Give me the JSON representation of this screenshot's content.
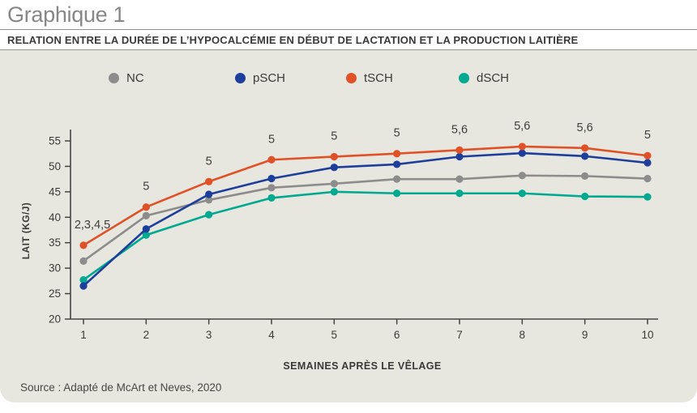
{
  "header": {
    "title": "Graphique 1",
    "subtitle": "RELATION ENTRE LA DURÉE DE L’HYPOCALCÉMIE EN DÉBUT DE LACTATION ET LA PRODUCTION LAITIÈRE"
  },
  "legend": {
    "items": [
      {
        "label": "NC",
        "color": "#8c8c8c"
      },
      {
        "label": "pSCH",
        "color": "#1d3e9b"
      },
      {
        "label": "tSCH",
        "color": "#e05127"
      },
      {
        "label": "dSCH",
        "color": "#00a98f"
      }
    ]
  },
  "chart_data": {
    "type": "line",
    "title": "Graphique 1",
    "x": [
      1,
      2,
      3,
      4,
      5,
      6,
      7,
      8,
      9,
      10
    ],
    "xlabel": "SEMAINES APRÈS LE VÊLAGE",
    "ylabel": "LAIT (KG/J)",
    "ylim": [
      20,
      55
    ],
    "ytick_step": 5,
    "grid": false,
    "legend_position": "top",
    "series": [
      {
        "name": "NC",
        "color": "#8c8c8c",
        "values": [
          31.4,
          40.3,
          43.4,
          45.8,
          46.6,
          47.5,
          47.5,
          48.2,
          48.1,
          47.6
        ]
      },
      {
        "name": "dSCH",
        "color": "#00a98f",
        "values": [
          27.7,
          36.5,
          40.5,
          43.8,
          45.0,
          44.7,
          44.7,
          44.7,
          44.1,
          44.0
        ]
      },
      {
        "name": "pSCH",
        "color": "#1d3e9b",
        "values": [
          26.5,
          37.7,
          44.5,
          47.6,
          49.8,
          50.4,
          51.9,
          52.6,
          52.0,
          50.7
        ]
      },
      {
        "name": "tSCH",
        "color": "#e05127",
        "values": [
          34.5,
          42.0,
          47.0,
          51.3,
          51.9,
          52.5,
          53.2,
          53.9,
          53.6,
          52.1
        ]
      }
    ],
    "point_annotations": [
      "2,3,4,5",
      "5",
      "5",
      "5",
      "5",
      "5",
      "5,6",
      "5,6",
      "5,6",
      "5"
    ],
    "annotation_note": "annotations appear above the tSCH line at each week"
  },
  "source": "Source : Adapté de McArt et Neves, 2020"
}
